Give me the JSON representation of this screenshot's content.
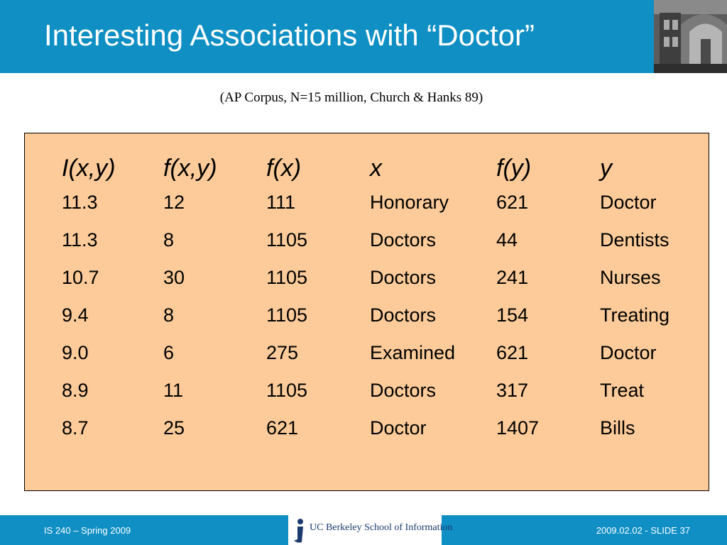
{
  "slide": {
    "title": "Interesting Associations with “Doctor”",
    "subtitle": "(AP Corpus, N=15 million, Church & Hanks 89)"
  },
  "table": {
    "headers": [
      "I(x,y)",
      "f(x,y)",
      "f(x)",
      "x",
      "f(y)",
      "y"
    ],
    "rows": [
      [
        "11.3",
        "12",
        "111",
        "Honorary",
        "621",
        "Doctor"
      ],
      [
        "11.3",
        "8",
        "1105",
        "Doctors",
        "44",
        "Dentists"
      ],
      [
        "10.7",
        "30",
        "1105",
        "Doctors",
        "241",
        "Nurses"
      ],
      [
        "9.4",
        "8",
        "1105",
        "Doctors",
        "154",
        "Treating"
      ],
      [
        "9.0",
        "6",
        "275",
        "Examined",
        "621",
        "Doctor"
      ],
      [
        "8.9",
        "11",
        "1105",
        "Doctors",
        "317",
        "Treat"
      ],
      [
        "8.7",
        "25",
        "621",
        "Doctor",
        "1407",
        "Bills"
      ]
    ]
  },
  "footer": {
    "left": "IS 240 – Spring 2009",
    "logo": "UC Berkeley School of Information",
    "right": "2009.02.02 - SLIDE 37"
  },
  "colors": {
    "header_bar": "#0f8fc4",
    "table_background": "#fdcb99"
  },
  "icons": {
    "header_image": "building-photo",
    "footer_logo": "ischool-logo-icon"
  }
}
